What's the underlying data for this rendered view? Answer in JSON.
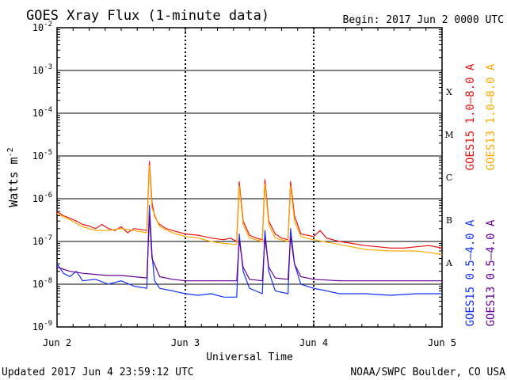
{
  "chart_data": {
    "type": "line",
    "title": "GOES Xray Flux (1-minute data)",
    "begin": "Begin:  2017 Jun 2 0000 UTC",
    "xlabel": "Universal Time",
    "ylabel": "Watts m",
    "ylabel_sup": "-2",
    "x_ticks": [
      "Jun 2",
      "Jun 3",
      "Jun 4",
      "Jun 5"
    ],
    "x_range_days": [
      0,
      3
    ],
    "y_scale": "log",
    "ylim": [
      1e-09,
      0.01
    ],
    "y_ticks": [
      {
        "base": "10",
        "exp": "-9"
      },
      {
        "base": "10",
        "exp": "-8"
      },
      {
        "base": "10",
        "exp": "-7"
      },
      {
        "base": "10",
        "exp": "-6"
      },
      {
        "base": "10",
        "exp": "-5"
      },
      {
        "base": "10",
        "exp": "-4"
      },
      {
        "base": "10",
        "exp": "-3"
      },
      {
        "base": "10",
        "exp": "-2"
      }
    ],
    "flare_classes": [
      "A",
      "B",
      "C",
      "M",
      "X"
    ],
    "series": [
      {
        "name": "GOES15 1.0–8.0 A",
        "color": "#ee1111",
        "x": [
          0,
          0.05,
          0.1,
          0.15,
          0.2,
          0.25,
          0.3,
          0.35,
          0.4,
          0.45,
          0.5,
          0.55,
          0.6,
          0.7,
          0.72,
          0.74,
          0.76,
          0.78,
          0.8,
          0.85,
          0.9,
          1.0,
          1.1,
          1.2,
          1.3,
          1.35,
          1.4,
          1.42,
          1.45,
          1.5,
          1.55,
          1.6,
          1.62,
          1.65,
          1.7,
          1.75,
          1.8,
          1.82,
          1.85,
          1.9,
          2.0,
          2.05,
          2.1,
          2.2,
          2.3,
          2.4,
          2.5,
          2.6,
          2.7,
          2.8,
          2.9,
          3.0
        ],
        "y": [
          5e-07,
          4e-07,
          3.5e-07,
          3e-07,
          2.5e-07,
          2.3e-07,
          2e-07,
          2.5e-07,
          2e-07,
          1.8e-07,
          2.2e-07,
          1.6e-07,
          2e-07,
          1.8e-07,
          7.5e-06,
          8e-07,
          4e-07,
          3e-07,
          2.5e-07,
          2e-07,
          1.8e-07,
          1.5e-07,
          1.4e-07,
          1.2e-07,
          1.1e-07,
          1.2e-07,
          1e-07,
          2.5e-06,
          3e-07,
          1.4e-07,
          1.2e-07,
          1.1e-07,
          2.8e-06,
          3e-07,
          1.5e-07,
          1.2e-07,
          1.1e-07,
          2.5e-06,
          4e-07,
          1.5e-07,
          1.3e-07,
          1.8e-07,
          1.2e-07,
          1e-07,
          9e-08,
          8e-08,
          7.5e-08,
          7e-08,
          7e-08,
          7.5e-08,
          8e-08,
          7e-08
        ]
      },
      {
        "name": "GOES13 1.0–8.0 A",
        "color": "#ffaa00",
        "x": [
          0,
          0.1,
          0.2,
          0.3,
          0.4,
          0.5,
          0.6,
          0.7,
          0.72,
          0.74,
          0.8,
          0.9,
          1.0,
          1.1,
          1.2,
          1.3,
          1.4,
          1.42,
          1.45,
          1.5,
          1.6,
          1.62,
          1.65,
          1.7,
          1.8,
          1.82,
          1.85,
          1.9,
          2.0,
          2.2,
          2.4,
          2.6,
          2.8,
          3.0
        ],
        "y": [
          4.5e-07,
          3.2e-07,
          2.2e-07,
          1.8e-07,
          1.8e-07,
          2e-07,
          1.8e-07,
          1.6e-07,
          6e-06,
          6e-07,
          2.2e-07,
          1.6e-07,
          1.3e-07,
          1.2e-07,
          1e-07,
          9e-08,
          8.5e-08,
          2e-06,
          2.5e-07,
          1.2e-07,
          1e-07,
          2.2e-06,
          2.5e-07,
          1.2e-07,
          1e-07,
          2e-06,
          3e-07,
          1.3e-07,
          1.1e-07,
          8.5e-08,
          6.5e-08,
          6e-08,
          6e-08,
          5e-08
        ]
      },
      {
        "name": "GOES15 0.5–4.0 A",
        "color": "#1030ff",
        "x": [
          0,
          0.05,
          0.1,
          0.15,
          0.2,
          0.3,
          0.4,
          0.5,
          0.6,
          0.7,
          0.72,
          0.74,
          0.76,
          0.8,
          0.9,
          1.0,
          1.1,
          1.2,
          1.3,
          1.4,
          1.42,
          1.45,
          1.5,
          1.6,
          1.62,
          1.65,
          1.7,
          1.8,
          1.82,
          1.85,
          1.9,
          2.0,
          2.1,
          2.2,
          2.4,
          2.6,
          2.8,
          3.0
        ],
        "y": [
          3e-08,
          1.8e-08,
          1.5e-08,
          2e-08,
          1.2e-08,
          1.3e-08,
          1e-08,
          1.2e-08,
          9e-09,
          8e-09,
          7e-07,
          5e-08,
          1.2e-08,
          8e-09,
          7e-09,
          6e-09,
          5.5e-09,
          6e-09,
          5e-09,
          5e-09,
          1.5e-07,
          2e-08,
          8e-09,
          6e-09,
          1.8e-07,
          2e-08,
          7e-09,
          6e-09,
          2e-07,
          3e-08,
          1e-08,
          8e-09,
          7e-09,
          6e-09,
          6e-09,
          5.5e-09,
          6e-09,
          6e-09
        ]
      },
      {
        "name": "GOES13 0.5–4.0 A",
        "color": "#660099",
        "x": [
          0,
          0.1,
          0.2,
          0.3,
          0.4,
          0.5,
          0.6,
          0.7,
          0.72,
          0.74,
          0.8,
          0.9,
          1.0,
          1.2,
          1.4,
          1.42,
          1.45,
          1.5,
          1.6,
          1.62,
          1.65,
          1.7,
          1.8,
          1.82,
          1.85,
          1.9,
          2.0,
          2.2,
          2.4,
          2.6,
          2.8,
          3.0
        ],
        "y": [
          2.5e-08,
          2e-08,
          1.8e-08,
          1.7e-08,
          1.6e-08,
          1.6e-08,
          1.5e-08,
          1.4e-08,
          4e-07,
          4e-08,
          1.5e-08,
          1.3e-08,
          1.2e-08,
          1.2e-08,
          1.2e-08,
          1.1e-07,
          2.5e-08,
          1.3e-08,
          1.2e-08,
          1.2e-07,
          2.5e-08,
          1.4e-08,
          1.3e-08,
          1.3e-07,
          3e-08,
          1.5e-08,
          1.3e-08,
          1.2e-08,
          1.2e-08,
          1.2e-08,
          1.2e-08,
          1.2e-08
        ]
      }
    ],
    "grid": "horizontal",
    "legend": "right"
  },
  "footer": {
    "updated": "Updated 2017 Jun  4 23:59:12 UTC",
    "source": "NOAA/SWPC Boulder, CO USA"
  }
}
